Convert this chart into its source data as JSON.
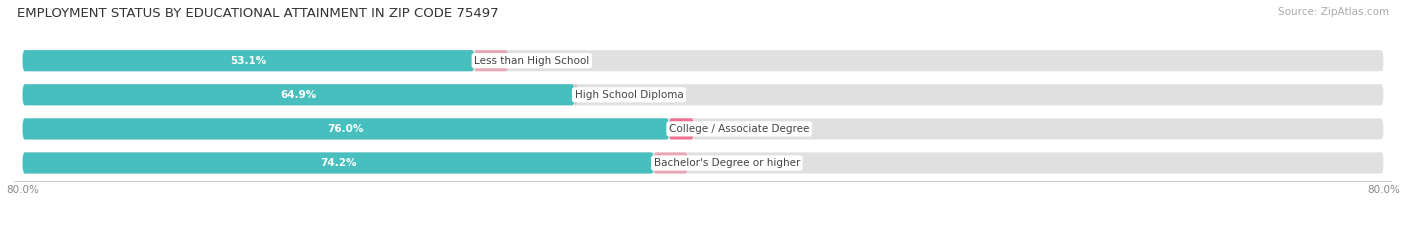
{
  "title": "EMPLOYMENT STATUS BY EDUCATIONAL ATTAINMENT IN ZIP CODE 75497",
  "source": "Source: ZipAtlas.com",
  "categories": [
    "Less than High School",
    "High School Diploma",
    "College / Associate Degree",
    "Bachelor's Degree or higher"
  ],
  "labor_force": [
    53.1,
    64.9,
    76.0,
    74.2
  ],
  "unemployed": [
    0.0,
    0.3,
    2.9,
    0.0
  ],
  "xlim_left": -80.0,
  "xlim_right": 80.0,
  "color_labor": "#47bfbf",
  "color_unemployed": "#f07090",
  "color_bg_bar": "#e0e0e0",
  "fig_bg": "#ffffff",
  "title_fontsize": 9.5,
  "source_fontsize": 7.5,
  "value_fontsize": 7.5,
  "cat_fontsize": 7.5,
  "legend_fontsize": 8,
  "bar_height": 0.62,
  "bar_gap": 0.18
}
